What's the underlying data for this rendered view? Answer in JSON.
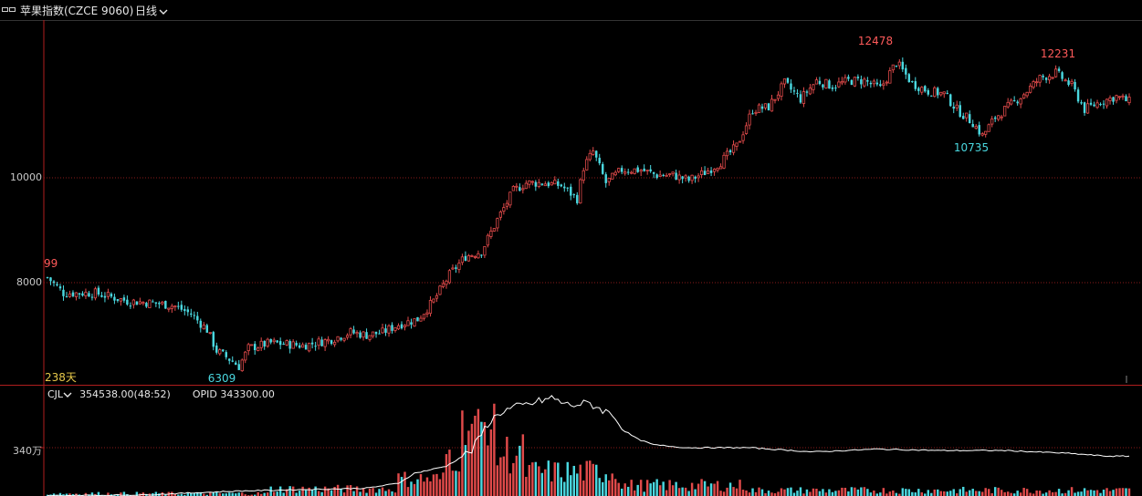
{
  "header": {
    "window_icon": "window-restore-icon",
    "title": "苹果指数(CZCE 9060)",
    "period": "日线",
    "period_chevron": "chevron-down-icon"
  },
  "price_axis": {
    "ticks": [
      "10000",
      "8000"
    ]
  },
  "price_panel": {
    "left_edge_label": "99",
    "days_label": "238天",
    "annotations": [
      "12478",
      "12231",
      "10735",
      "6309"
    ]
  },
  "volume_panel": {
    "indicator": "CJL",
    "indicator_chevron": "chevron-down-icon",
    "volume_value": "354538.00(48:52)",
    "opid_label": "OPID",
    "opid_value": "343300.00",
    "axis_tick": "340万"
  },
  "colors": {
    "up": "#e04a4a",
    "down": "#4ad8e0",
    "grid": "#8a1a1a",
    "panel_border": "#b01e1e",
    "opid_line": "#ffffff",
    "annotation_high": "#ff5a5a",
    "annotation_low": "#4ad8e0"
  },
  "chart_data": {
    "type": "candlestick",
    "y_range": [
      6200,
      12700
    ],
    "days": 238,
    "high_labels": [
      {
        "label": "12478",
        "value": 12478
      },
      {
        "label": "12231",
        "value": 12231
      }
    ],
    "low_labels": [
      {
        "label": "10735",
        "value": 10735
      },
      {
        "label": "6309",
        "value": 6309
      }
    ],
    "keyframes_close": [
      [
        0,
        8100
      ],
      [
        5,
        7800
      ],
      [
        15,
        7800
      ],
      [
        25,
        7650
      ],
      [
        35,
        7600
      ],
      [
        40,
        7550
      ],
      [
        45,
        7400
      ],
      [
        50,
        7100
      ],
      [
        53,
        6700
      ],
      [
        58,
        6500
      ],
      [
        60,
        6400
      ],
      [
        63,
        6750
      ],
      [
        70,
        6850
      ],
      [
        80,
        6800
      ],
      [
        88,
        6900
      ],
      [
        95,
        7050
      ],
      [
        100,
        7000
      ],
      [
        105,
        7050
      ],
      [
        110,
        7200
      ],
      [
        116,
        7300
      ],
      [
        121,
        7650
      ],
      [
        126,
        8150
      ],
      [
        131,
        8500
      ],
      [
        136,
        8600
      ],
      [
        141,
        9200
      ],
      [
        146,
        9750
      ],
      [
        150,
        9900
      ],
      [
        156,
        9900
      ],
      [
        161,
        9850
      ],
      [
        166,
        9600
      ],
      [
        168,
        10200
      ],
      [
        171,
        10500
      ],
      [
        175,
        9900
      ],
      [
        180,
        10150
      ],
      [
        186,
        10150
      ],
      [
        191,
        10050
      ],
      [
        196,
        10050
      ],
      [
        201,
        9950
      ],
      [
        206,
        10100
      ],
      [
        211,
        10300
      ],
      [
        216,
        10600
      ],
      [
        221,
        11300
      ],
      [
        226,
        11350
      ],
      [
        231,
        11800
      ],
      [
        236,
        11500
      ],
      [
        241,
        11850
      ],
      [
        246,
        11750
      ],
      [
        251,
        11850
      ],
      [
        256,
        11850
      ],
      [
        261,
        11700
      ],
      [
        266,
        12200
      ],
      [
        271,
        11800
      ],
      [
        276,
        11650
      ],
      [
        281,
        11600
      ],
      [
        285,
        11300
      ],
      [
        290,
        11050
      ],
      [
        293,
        10800
      ],
      [
        297,
        11150
      ],
      [
        301,
        11350
      ],
      [
        306,
        11600
      ],
      [
        311,
        11900
      ],
      [
        316,
        12000
      ],
      [
        321,
        11750
      ],
      [
        325,
        11300
      ],
      [
        330,
        11450
      ],
      [
        335,
        11550
      ],
      [
        339,
        11450
      ]
    ],
    "volume_unit": "万",
    "volume_tick": 340,
    "opid_keyframes": [
      [
        0,
        2
      ],
      [
        30,
        8
      ],
      [
        60,
        35
      ],
      [
        80,
        45
      ],
      [
        100,
        55
      ],
      [
        110,
        90
      ],
      [
        115,
        160
      ],
      [
        125,
        210
      ],
      [
        133,
        320
      ],
      [
        138,
        510
      ],
      [
        142,
        590
      ],
      [
        146,
        620
      ],
      [
        150,
        640
      ],
      [
        158,
        690
      ],
      [
        163,
        640
      ],
      [
        170,
        650
      ],
      [
        178,
        560
      ],
      [
        180,
        470
      ],
      [
        185,
        400
      ],
      [
        190,
        360
      ],
      [
        200,
        340
      ],
      [
        220,
        340
      ],
      [
        240,
        310
      ],
      [
        260,
        330
      ],
      [
        280,
        320
      ],
      [
        300,
        320
      ],
      [
        320,
        300
      ],
      [
        332,
        280
      ],
      [
        339,
        280
      ]
    ]
  }
}
